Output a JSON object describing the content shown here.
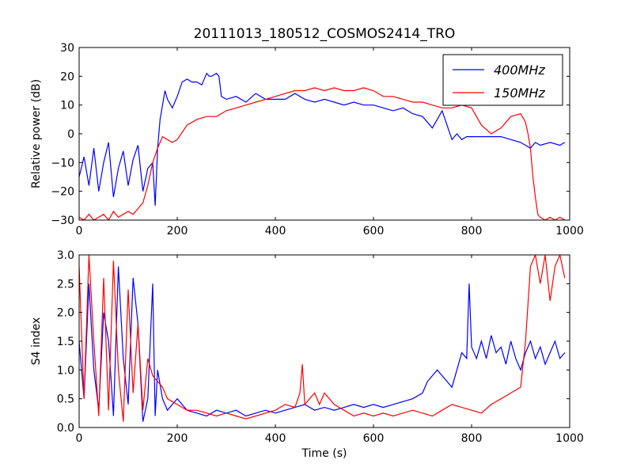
{
  "figure": {
    "title": "20111013_180512_COSMOS2414_TRO",
    "xlabel": "Time (s)"
  },
  "chart_data": [
    {
      "type": "line",
      "ylabel": "Relative power (dB)",
      "xlim": [
        0,
        1000
      ],
      "ylim": [
        -30,
        30
      ],
      "xticks": [
        "0",
        "200",
        "400",
        "600",
        "800",
        "1000"
      ],
      "yticks": [
        "−30",
        "−20",
        "−10",
        "0",
        "10",
        "20",
        "30"
      ],
      "xtick_values": [
        0,
        200,
        400,
        600,
        800,
        1000
      ],
      "ytick_values": [
        -30,
        -20,
        -10,
        0,
        10,
        20,
        30
      ],
      "legend_position": "top-right",
      "grid": false,
      "series": [
        {
          "name": "400MHz",
          "color": "#0000ff",
          "x": [
            0,
            10,
            20,
            30,
            40,
            50,
            60,
            70,
            80,
            90,
            100,
            110,
            120,
            130,
            140,
            150,
            155,
            160,
            165,
            170,
            175,
            180,
            190,
            200,
            210,
            220,
            230,
            240,
            250,
            260,
            265,
            270,
            280,
            285,
            290,
            300,
            320,
            340,
            360,
            380,
            400,
            420,
            440,
            460,
            480,
            500,
            520,
            540,
            560,
            580,
            600,
            620,
            640,
            660,
            680,
            700,
            720,
            740,
            760,
            770,
            780,
            790,
            800,
            810,
            820,
            840,
            860,
            880,
            900,
            910,
            920,
            930,
            940,
            960,
            980,
            990
          ],
          "y": [
            -15,
            -8,
            -18,
            -5,
            -20,
            -10,
            -3,
            -22,
            -12,
            -6,
            -18,
            -9,
            -4,
            -20,
            -12,
            -10,
            -25,
            -5,
            5,
            10,
            15,
            12,
            9,
            13,
            18,
            19,
            18,
            18,
            17,
            21,
            20,
            20,
            21,
            20,
            13,
            12,
            13,
            11,
            14,
            12,
            12,
            12,
            14,
            12,
            11,
            12,
            11,
            10,
            11,
            10,
            10,
            9,
            8,
            9,
            7,
            6,
            2,
            8,
            -2,
            0,
            -2,
            -1,
            -1,
            -1,
            -1,
            -1,
            -1,
            -2,
            -3,
            -4,
            -5,
            -3,
            -4,
            -3,
            -4,
            -3
          ]
        },
        {
          "name": "150MHz",
          "color": "#ff0000",
          "x": [
            0,
            10,
            20,
            30,
            40,
            50,
            60,
            70,
            80,
            90,
            100,
            110,
            120,
            130,
            140,
            150,
            160,
            170,
            180,
            190,
            200,
            220,
            240,
            260,
            280,
            300,
            320,
            340,
            360,
            380,
            400,
            420,
            440,
            460,
            480,
            500,
            520,
            540,
            560,
            580,
            600,
            620,
            640,
            660,
            680,
            700,
            720,
            740,
            760,
            780,
            800,
            820,
            840,
            860,
            880,
            900,
            910,
            915,
            920,
            925,
            930,
            935,
            940,
            950,
            960,
            970,
            980,
            990
          ],
          "y": [
            -29,
            -30,
            -28,
            -30,
            -29,
            -28,
            -30,
            -27,
            -29,
            -28,
            -27,
            -28,
            -26,
            -24,
            -18,
            -10,
            -5,
            -1,
            -2,
            -3,
            -2,
            3,
            5,
            6,
            6,
            8,
            9,
            10,
            11,
            12,
            13,
            14,
            15,
            15,
            16,
            15,
            16,
            15,
            15,
            16,
            15,
            13,
            13,
            12,
            11,
            11,
            10,
            9,
            9,
            10,
            9,
            3,
            0,
            2,
            6,
            7,
            4,
            0,
            -5,
            -15,
            -22,
            -28,
            -29,
            -30,
            -29,
            -30,
            -29,
            -30
          ]
        }
      ]
    },
    {
      "type": "line",
      "ylabel": "S4 index",
      "xlim": [
        0,
        1000
      ],
      "ylim": [
        0,
        3
      ],
      "xticks": [
        "0",
        "200",
        "400",
        "600",
        "800",
        "1000"
      ],
      "yticks": [
        "0.0",
        "0.5",
        "1.0",
        "1.5",
        "2.0",
        "2.5",
        "3.0"
      ],
      "xtick_values": [
        0,
        200,
        400,
        600,
        800,
        1000
      ],
      "ytick_values": [
        0,
        0.5,
        1.0,
        1.5,
        2.0,
        2.5,
        3.0
      ],
      "grid": false,
      "series": [
        {
          "name": "400MHz",
          "color": "#0000ff",
          "x": [
            0,
            10,
            20,
            30,
            40,
            50,
            60,
            70,
            80,
            90,
            100,
            110,
            120,
            130,
            140,
            150,
            155,
            160,
            170,
            180,
            190,
            200,
            220,
            240,
            260,
            280,
            300,
            320,
            340,
            360,
            380,
            400,
            420,
            440,
            460,
            480,
            500,
            520,
            540,
            560,
            580,
            600,
            620,
            640,
            660,
            680,
            700,
            710,
            720,
            730,
            740,
            760,
            770,
            780,
            790,
            795,
            800,
            810,
            820,
            830,
            840,
            850,
            860,
            870,
            880,
            890,
            900,
            910,
            920,
            930,
            940,
            950,
            960,
            970,
            980,
            990
          ],
          "y": [
            1.5,
            0.5,
            2.5,
            1.0,
            0.3,
            2.0,
            1.5,
            0.2,
            2.8,
            1.2,
            0.4,
            2.6,
            1.8,
            0.1,
            0.5,
            2.5,
            0.2,
            1.0,
            0.5,
            0.3,
            0.4,
            0.5,
            0.3,
            0.25,
            0.2,
            0.3,
            0.25,
            0.3,
            0.2,
            0.25,
            0.3,
            0.25,
            0.3,
            0.35,
            0.4,
            0.3,
            0.35,
            0.3,
            0.35,
            0.4,
            0.35,
            0.4,
            0.35,
            0.4,
            0.45,
            0.5,
            0.6,
            0.8,
            0.9,
            1.0,
            0.9,
            0.7,
            1.0,
            1.3,
            1.2,
            2.5,
            1.4,
            1.2,
            1.5,
            1.2,
            1.6,
            1.3,
            1.4,
            1.1,
            1.5,
            1.2,
            1.0,
            1.3,
            1.5,
            1.2,
            1.4,
            1.1,
            1.3,
            1.5,
            1.2,
            1.3
          ]
        },
        {
          "name": "150MHz",
          "color": "#ff0000",
          "x": [
            0,
            10,
            20,
            30,
            40,
            50,
            60,
            70,
            80,
            90,
            100,
            110,
            120,
            130,
            140,
            150,
            160,
            170,
            180,
            200,
            220,
            240,
            260,
            280,
            300,
            320,
            340,
            360,
            380,
            400,
            420,
            440,
            450,
            455,
            460,
            470,
            480,
            490,
            500,
            510,
            520,
            540,
            560,
            580,
            600,
            620,
            640,
            660,
            680,
            700,
            720,
            740,
            760,
            780,
            800,
            820,
            840,
            860,
            880,
            900,
            910,
            920,
            930,
            940,
            950,
            960,
            970,
            980,
            990
          ],
          "y": [
            2.8,
            0.5,
            3.0,
            1.5,
            0.2,
            2.6,
            0.3,
            2.9,
            1.0,
            0.1,
            2.4,
            0.6,
            1.8,
            0.3,
            1.2,
            0.9,
            0.8,
            0.7,
            0.5,
            0.4,
            0.3,
            0.3,
            0.25,
            0.2,
            0.25,
            0.2,
            0.15,
            0.2,
            0.25,
            0.3,
            0.4,
            0.35,
            0.6,
            1.1,
            0.4,
            0.5,
            0.6,
            0.4,
            0.6,
            0.5,
            0.4,
            0.3,
            0.2,
            0.25,
            0.2,
            0.25,
            0.2,
            0.25,
            0.3,
            0.25,
            0.2,
            0.3,
            0.4,
            0.35,
            0.3,
            0.25,
            0.4,
            0.5,
            0.6,
            0.7,
            1.5,
            2.8,
            3.0,
            2.5,
            3.0,
            2.2,
            2.8,
            3.0,
            2.6
          ]
        }
      ]
    }
  ]
}
